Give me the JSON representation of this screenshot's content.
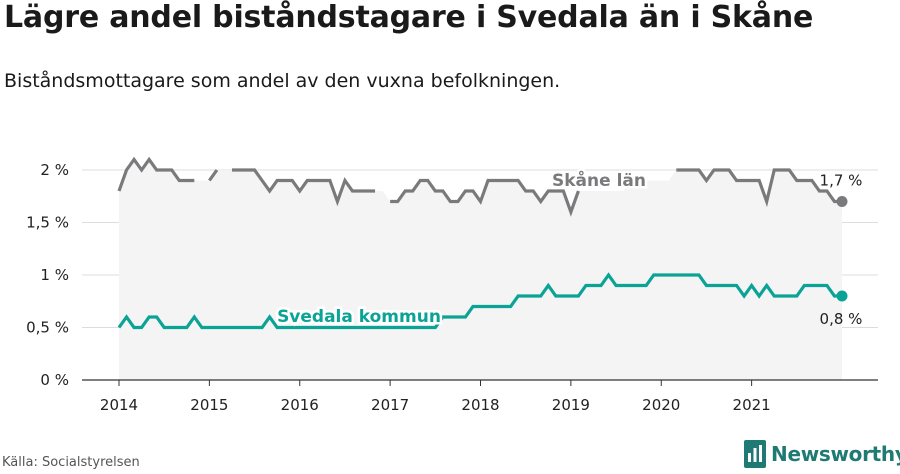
{
  "title": "Lägre andel biståndstagare i Svedala än i Skåne",
  "subtitle": "Biståndsmottagare som andel av den vuxna befolkningen.",
  "source": "Källa: Socialstyrelsen",
  "brand": "Newsworthy",
  "colors": {
    "skane": "#7a7a7c",
    "svedala": "#0aa396",
    "area": "#f4f4f5",
    "grid": "#dddddd",
    "axis": "#333333"
  },
  "chart_data": {
    "type": "line",
    "x_unit": "month index (0 = Jan 2014)",
    "xlim": [
      0,
      96
    ],
    "ylim": [
      0,
      2
    ],
    "y_ticks": [
      {
        "value": 0,
        "label": "0 %"
      },
      {
        "value": 0.5,
        "label": "0,5 %"
      },
      {
        "value": 1,
        "label": "1 %"
      },
      {
        "value": 1.5,
        "label": "1,5 %"
      },
      {
        "value": 2,
        "label": "2 %"
      }
    ],
    "x_ticks": [
      {
        "value": 0,
        "label": "2014"
      },
      {
        "value": 12,
        "label": "2015"
      },
      {
        "value": 24,
        "label": "2016"
      },
      {
        "value": 36,
        "label": "2017"
      },
      {
        "value": 48,
        "label": "2018"
      },
      {
        "value": 60,
        "label": "2019"
      },
      {
        "value": 72,
        "label": "2020"
      },
      {
        "value": 84,
        "label": "2021"
      }
    ],
    "series": [
      {
        "name": "Skåne län",
        "color": "#7a7a7c",
        "end_label": "1,7 %",
        "values": [
          1.8,
          2.0,
          2.1,
          2.0,
          2.1,
          2.0,
          2.0,
          2.0,
          1.9,
          1.9,
          1.9,
          null,
          1.9,
          2.0,
          null,
          2.0,
          2.0,
          2.0,
          2.0,
          1.9,
          1.8,
          1.9,
          1.9,
          1.9,
          1.8,
          1.9,
          1.9,
          1.9,
          1.9,
          1.7,
          1.9,
          1.8,
          1.8,
          1.8,
          1.8,
          null,
          1.7,
          1.7,
          1.8,
          1.8,
          1.9,
          1.9,
          1.8,
          1.8,
          1.7,
          1.7,
          1.8,
          1.8,
          1.7,
          1.9,
          1.9,
          1.9,
          1.9,
          1.9,
          1.8,
          1.8,
          1.7,
          1.8,
          1.8,
          1.8,
          1.6,
          1.8,
          null,
          null,
          null,
          null,
          null,
          null,
          1.9,
          1.9,
          null,
          null,
          null,
          null,
          2.0,
          2.0,
          2.0,
          2.0,
          1.9,
          2.0,
          2.0,
          2.0,
          1.9,
          1.9,
          1.9,
          1.9,
          1.7,
          2.0,
          2.0,
          2.0,
          1.9,
          1.9,
          1.9,
          1.8,
          1.8,
          1.7,
          1.7
        ]
      },
      {
        "name": "Svedala kommun",
        "color": "#0aa396",
        "end_label": "0,8 %",
        "values": [
          0.5,
          0.6,
          0.5,
          0.5,
          0.6,
          0.6,
          0.5,
          0.5,
          0.5,
          0.5,
          0.6,
          0.5,
          0.5,
          0.5,
          0.5,
          0.5,
          0.5,
          0.5,
          0.5,
          0.5,
          0.6,
          0.5,
          0.5,
          0.5,
          0.5,
          0.5,
          0.5,
          0.5,
          0.5,
          0.5,
          0.5,
          0.5,
          0.5,
          0.5,
          0.5,
          0.5,
          0.5,
          0.5,
          0.5,
          0.5,
          0.5,
          0.5,
          0.5,
          0.6,
          0.6,
          0.6,
          0.6,
          0.7,
          0.7,
          0.7,
          0.7,
          0.7,
          0.7,
          0.8,
          0.8,
          0.8,
          0.8,
          0.9,
          0.8,
          0.8,
          0.8,
          0.8,
          0.9,
          0.9,
          0.9,
          1.0,
          0.9,
          0.9,
          0.9,
          0.9,
          0.9,
          1.0,
          1.0,
          1.0,
          1.0,
          1.0,
          1.0,
          1.0,
          0.9,
          0.9,
          0.9,
          0.9,
          0.9,
          0.8,
          0.9,
          0.8,
          0.9,
          0.8,
          0.8,
          0.8,
          0.8,
          0.9,
          0.9,
          0.9,
          0.9,
          0.8,
          0.8
        ]
      }
    ],
    "annotations": [
      {
        "text": "Skåne län",
        "series": 0
      },
      {
        "text": "Svedala kommun",
        "series": 1
      }
    ]
  }
}
